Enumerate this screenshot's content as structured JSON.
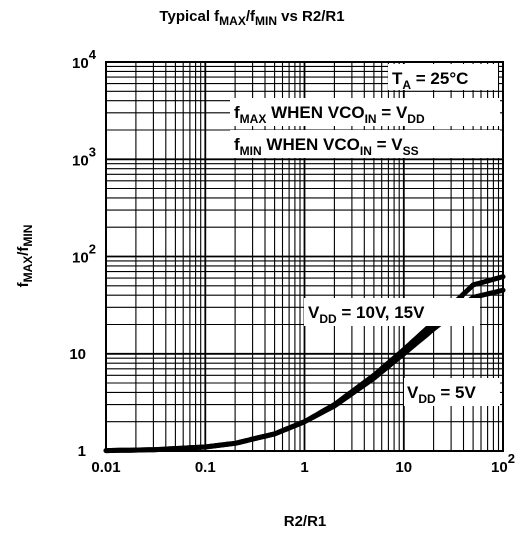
{
  "chart_data": {
    "type": "line",
    "title": {
      "pre": "Typical f",
      "sub1": "MAX",
      "mid": "/f",
      "sub2": "MIN",
      "post": " vs R2/R1"
    },
    "xlabel": "R2/R1",
    "ylabel": {
      "pre": "f",
      "sub1": "MAX",
      "mid": "/f",
      "sub2": "MIN"
    },
    "x_scale": "log",
    "y_scale": "log",
    "xlim": [
      0.01,
      100
    ],
    "ylim": [
      1,
      10000
    ],
    "grid": true,
    "x_ticks": [
      {
        "value": 0.01,
        "label": "0.01"
      },
      {
        "value": 0.1,
        "label": "0.1"
      },
      {
        "value": 1,
        "label": "1"
      },
      {
        "value": 10,
        "label": "10"
      },
      {
        "value": 100,
        "label": "10",
        "sup": "2"
      }
    ],
    "y_ticks": [
      {
        "value": 1,
        "label": "1"
      },
      {
        "value": 10,
        "label": "10"
      },
      {
        "value": 100,
        "label": "10",
        "sup": "2"
      },
      {
        "value": 1000,
        "label": "10",
        "sup": "3"
      },
      {
        "value": 10000,
        "label": "10",
        "sup": "4"
      }
    ],
    "series": [
      {
        "name": "VDD = 10V, 15V",
        "x": [
          0.01,
          0.03,
          0.1,
          0.2,
          0.5,
          1,
          2,
          5,
          10,
          20,
          50,
          100
        ],
        "y": [
          1.01,
          1.03,
          1.1,
          1.2,
          1.5,
          2.0,
          3.0,
          6.0,
          11,
          21,
          51,
          62
        ]
      },
      {
        "name": "VDD = 5V",
        "x": [
          0.01,
          0.03,
          0.1,
          0.2,
          0.5,
          1,
          2,
          5,
          10,
          20,
          50,
          100
        ],
        "y": [
          1.01,
          1.03,
          1.1,
          1.2,
          1.5,
          2.0,
          2.9,
          5.6,
          10,
          18,
          38,
          45
        ]
      }
    ],
    "annotations": {
      "ta": {
        "pre": "T",
        "sub": "A",
        "post": " = 25°C"
      },
      "fmax": {
        "pre": "f",
        "sub1": "MAX",
        "mid": " WHEN VCO",
        "sub2": "IN",
        "mid2": " = V",
        "sub3": "DD"
      },
      "fmin": {
        "pre": "f",
        "sub1": "MIN",
        "mid": " WHEN VCO",
        "sub2": "IN",
        "mid2": " = V",
        "sub3": "SS"
      },
      "vdd_high": {
        "pre": "V",
        "sub": "DD",
        "post": " = 10V, 15V"
      },
      "vdd_low": {
        "pre": "V",
        "sub": "DD",
        "post": " = 5V"
      }
    }
  }
}
